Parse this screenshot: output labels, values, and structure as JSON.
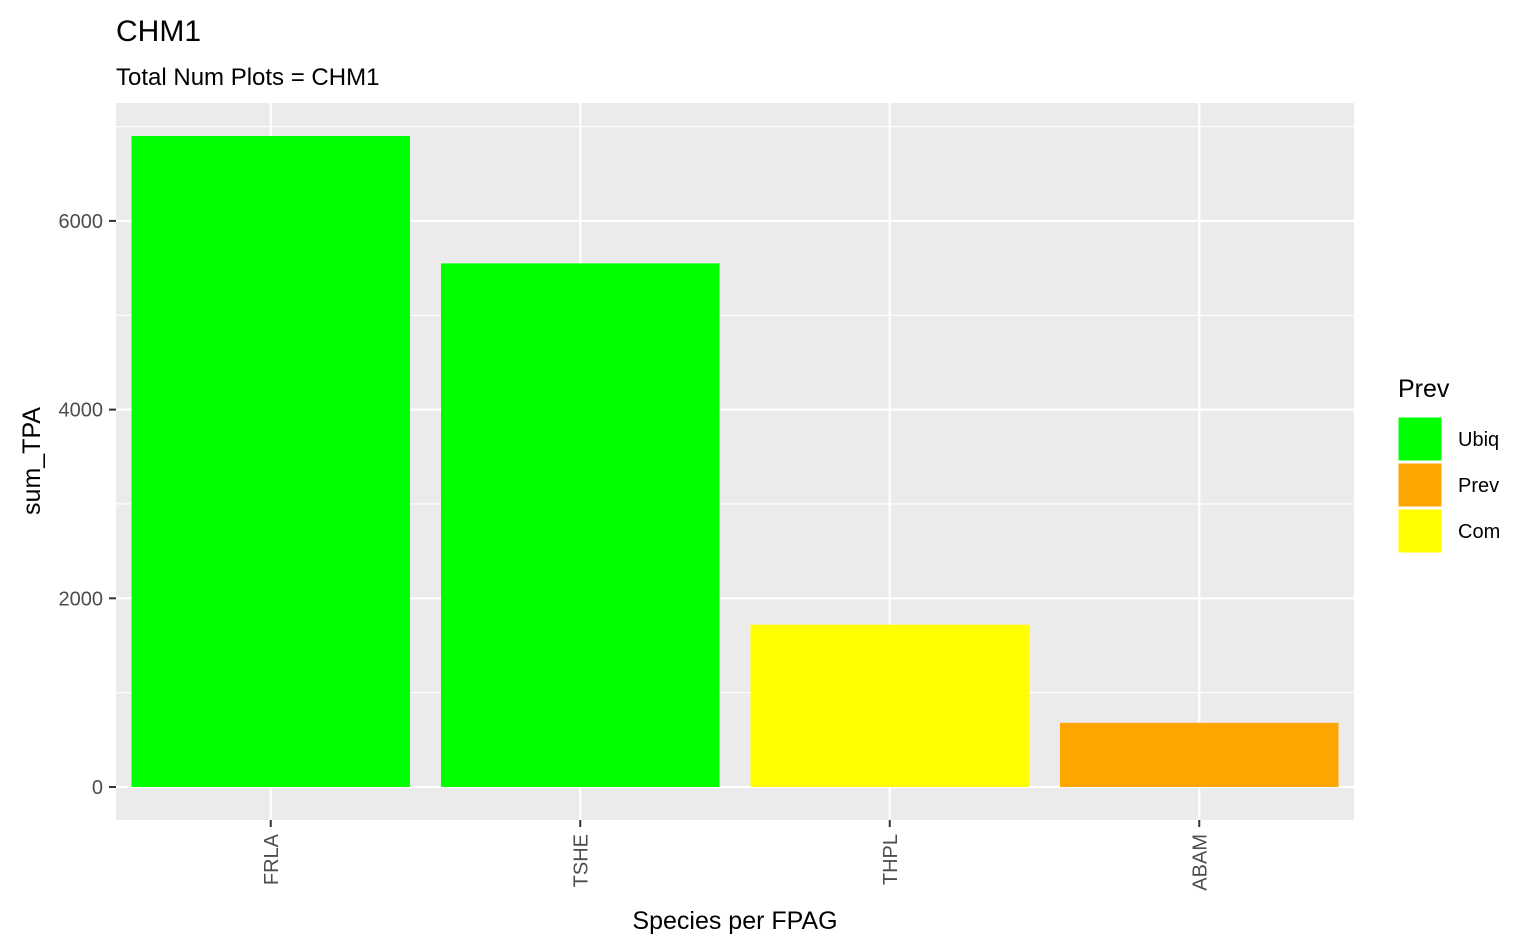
{
  "chart_data": {
    "type": "bar",
    "title": "CHM1",
    "subtitle": "Total Num Plots = CHM1",
    "xlabel": "Species per FPAG",
    "ylabel": "sum_TPA",
    "categories": [
      "FRLA",
      "TSHE",
      "THPL",
      "ABAM"
    ],
    "values": [
      6900,
      5550,
      1720,
      680
    ],
    "bar_groups": [
      "Ubiq",
      "Ubiq",
      "Com",
      "Prev"
    ],
    "ylim": [
      -350,
      7250
    ],
    "yticks": [
      0,
      2000,
      4000,
      6000
    ],
    "ytick_labels": [
      "0",
      "2000",
      "4000",
      "6000"
    ],
    "grid": true,
    "legend": {
      "title": "Prev",
      "position": "right",
      "entries": [
        {
          "label": "Ubiq",
          "color": "#00ff00"
        },
        {
          "label": "Prev",
          "color": "#ffa500"
        },
        {
          "label": "Com",
          "color": "#ffff00"
        }
      ]
    },
    "colors": {
      "panel_background": "#ebebeb",
      "grid": "#ffffff",
      "tick": "#333333"
    }
  }
}
